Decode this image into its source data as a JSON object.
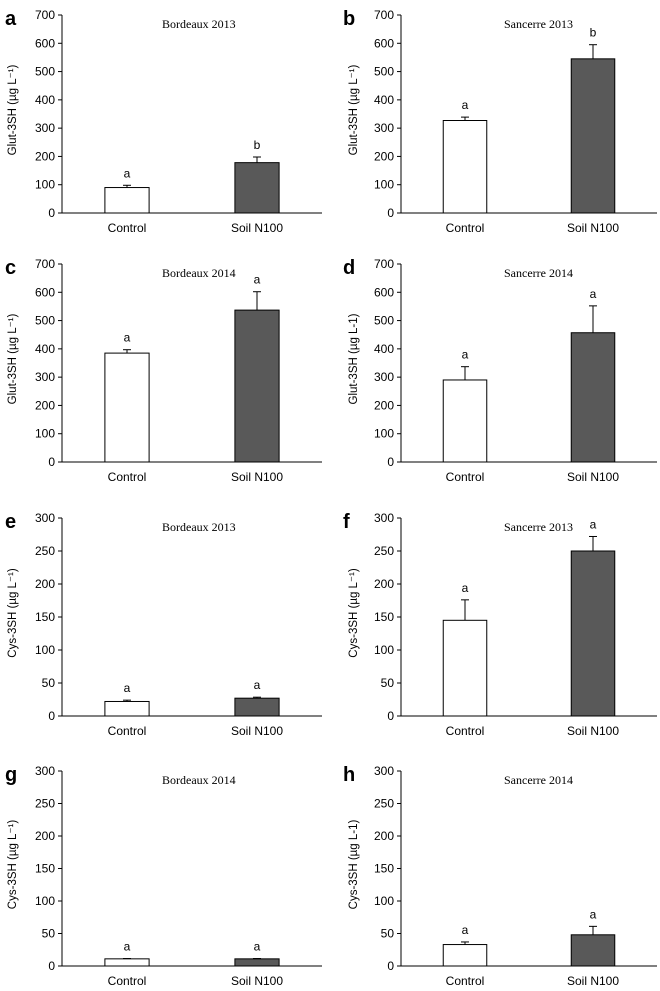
{
  "figure": {
    "chart_data": [
      {
        "type": "bar",
        "letter": "a",
        "title": "Bordeaux 2013",
        "ylabel": "Glut-3SH (µg L⁻¹)",
        "ylim": [
          0,
          700
        ],
        "yticks": [
          "0",
          "100",
          "200",
          "300",
          "400",
          "500",
          "600",
          "700"
        ],
        "categories": [
          "Control",
          "Soil N100"
        ],
        "values": [
          90,
          178
        ],
        "errors": [
          8,
          20
        ],
        "significance": [
          "a",
          "b"
        ],
        "colors": [
          "#ffffff",
          "#595959"
        ]
      },
      {
        "type": "bar",
        "letter": "b",
        "title": "Sancerre 2013",
        "ylabel": "Glut-3SH (µg L⁻¹)",
        "ylim": [
          0,
          700
        ],
        "yticks": [
          "0",
          "100",
          "200",
          "300",
          "400",
          "500",
          "600",
          "700"
        ],
        "categories": [
          "Control",
          "Soil N100"
        ],
        "values": [
          327,
          545
        ],
        "errors": [
          12,
          50
        ],
        "significance": [
          "a",
          "b"
        ],
        "colors": [
          "#ffffff",
          "#595959"
        ]
      },
      {
        "type": "bar",
        "letter": "c",
        "title": "Bordeaux 2014",
        "ylabel": "Glut-3SH (µg L⁻¹)",
        "ylim": [
          0,
          700
        ],
        "yticks": [
          "0",
          "100",
          "200",
          "300",
          "400",
          "500",
          "600",
          "700"
        ],
        "categories": [
          "Control",
          "Soil N100"
        ],
        "values": [
          385,
          537
        ],
        "errors": [
          12,
          65
        ],
        "significance": [
          "a",
          "a"
        ],
        "colors": [
          "#ffffff",
          "#595959"
        ]
      },
      {
        "type": "bar",
        "letter": "d",
        "title": "Sancerre 2014",
        "ylabel": "Glut-3SH (µg L-1)",
        "ylim": [
          0,
          700
        ],
        "yticks": [
          "0",
          "100",
          "200",
          "300",
          "400",
          "500",
          "600",
          "700"
        ],
        "categories": [
          "Control",
          "Soil N100"
        ],
        "values": [
          290,
          457
        ],
        "errors": [
          47,
          95
        ],
        "significance": [
          "a",
          "a"
        ],
        "colors": [
          "#ffffff",
          "#595959"
        ]
      },
      {
        "type": "bar",
        "letter": "e",
        "title": "Bordeaux 2013",
        "ylabel": "Cys-3SH (µg L⁻¹)",
        "ylim": [
          0,
          300
        ],
        "yticks": [
          "0",
          "50",
          "100",
          "150",
          "200",
          "250",
          "300"
        ],
        "categories": [
          "Control",
          "Soil N100"
        ],
        "values": [
          22,
          27
        ],
        "errors": [
          2,
          1.5
        ],
        "significance": [
          "a",
          "a"
        ],
        "colors": [
          "#ffffff",
          "#595959"
        ]
      },
      {
        "type": "bar",
        "letter": "f",
        "title": "Sancerre 2013",
        "ylabel": "Cys-3SH (µg L⁻¹)",
        "ylim": [
          0,
          300
        ],
        "yticks": [
          "0",
          "50",
          "100",
          "150",
          "200",
          "250",
          "300"
        ],
        "categories": [
          "Control",
          "Soil N100"
        ],
        "values": [
          145,
          250
        ],
        "errors": [
          31,
          22
        ],
        "significance": [
          "a",
          "a"
        ],
        "colors": [
          "#ffffff",
          "#595959"
        ]
      },
      {
        "type": "bar",
        "letter": "g",
        "title": "Bordeaux 2014",
        "ylabel": "Cys-3SH (µg L⁻¹)",
        "ylim": [
          0,
          300
        ],
        "yticks": [
          "0",
          "50",
          "100",
          "150",
          "200",
          "250",
          "300"
        ],
        "categories": [
          "Control",
          "Soil N100"
        ],
        "values": [
          11,
          11
        ],
        "errors": [
          0.5,
          0.5
        ],
        "significance": [
          "a",
          "a"
        ],
        "colors": [
          "#ffffff",
          "#595959"
        ]
      },
      {
        "type": "bar",
        "letter": "h",
        "title": "Sancerre 2014",
        "ylabel": "Cys-3SH (µg L-1)",
        "ylim": [
          0,
          300
        ],
        "yticks": [
          "0",
          "50",
          "100",
          "150",
          "200",
          "250",
          "300"
        ],
        "categories": [
          "Control",
          "Soil N100"
        ],
        "values": [
          33,
          48
        ],
        "errors": [
          4,
          13
        ],
        "significance": [
          "a",
          "a"
        ],
        "colors": [
          "#ffffff",
          "#595959"
        ]
      }
    ]
  }
}
